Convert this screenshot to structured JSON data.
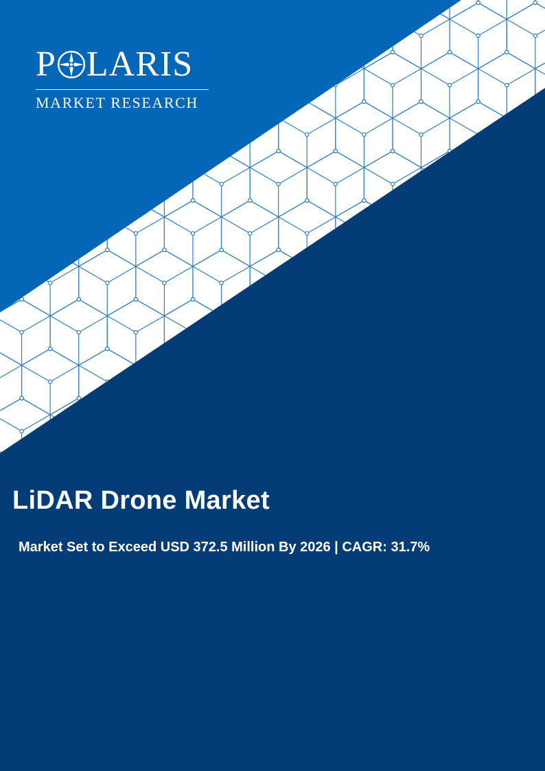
{
  "brand": {
    "name_before": "P",
    "name_after": "LARIS",
    "tagline": "MARKET RESEARCH",
    "logo_icon": "compass-star-icon"
  },
  "report": {
    "title": "LiDAR Drone Market",
    "subtitle": "Market Set to Exceed USD 372.5 Million By 2026 | CAGR: 31.7%"
  },
  "colors": {
    "top_blue": "#0466b6",
    "navy": "#033c76",
    "pattern_line": "#2f7cc2",
    "white": "#ffffff"
  }
}
